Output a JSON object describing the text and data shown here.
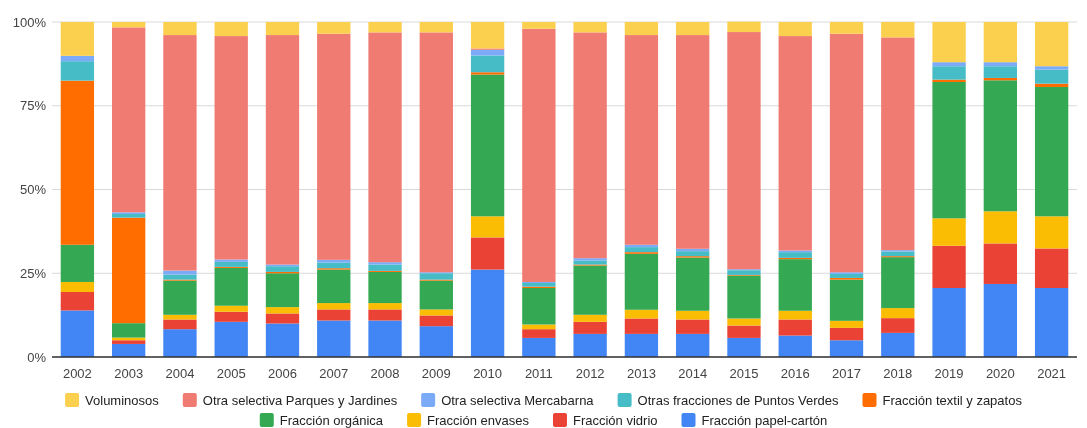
{
  "chart_data": {
    "type": "bar",
    "stacked": true,
    "categories": [
      "2002",
      "2003",
      "2004",
      "2005",
      "2006",
      "2007",
      "2008",
      "2009",
      "2010",
      "2011",
      "2012",
      "2013",
      "2014",
      "2015",
      "2016",
      "2017",
      "2018",
      "2019",
      "2020",
      "2021"
    ],
    "ylim": [
      0,
      100
    ],
    "yticks": [
      {
        "value": 0,
        "label": "0%"
      },
      {
        "value": 25,
        "label": "25%"
      },
      {
        "value": 50,
        "label": "50%"
      },
      {
        "value": 75,
        "label": "75%"
      },
      {
        "value": 100,
        "label": "100%"
      }
    ],
    "grid": "y",
    "legend": "bottom",
    "series": [
      {
        "name": "Fracción papel-cartón",
        "color": "#4285f4",
        "values": [
          13.9,
          3.9,
          8.3,
          10.5,
          10.0,
          10.9,
          10.9,
          9.2,
          26.1,
          5.7,
          6.9,
          6.9,
          6.9,
          5.7,
          6.4,
          5.0,
          7.2,
          20.6,
          21.8,
          20.6
        ]
      },
      {
        "name": "Fracción vidrio",
        "color": "#ea4335",
        "values": [
          5.5,
          1.1,
          2.9,
          3.0,
          3.0,
          3.3,
          3.3,
          3.2,
          9.6,
          2.6,
          3.6,
          4.6,
          4.3,
          3.7,
          4.8,
          3.7,
          4.4,
          12.6,
          12.1,
          11.8
        ]
      },
      {
        "name": "Fracción envases",
        "color": "#fbbc04",
        "values": [
          3.0,
          0.8,
          1.4,
          1.8,
          1.9,
          1.9,
          1.9,
          1.8,
          6.3,
          1.4,
          2.1,
          2.6,
          2.6,
          2.1,
          2.6,
          2.1,
          3.0,
          8.2,
          9.6,
          9.6
        ]
      },
      {
        "name": "Fracción orgánica",
        "color": "#34a853",
        "values": [
          11.1,
          4.3,
          10.2,
          11.3,
          10.1,
          10.0,
          9.3,
          8.6,
          42.3,
          10.9,
          14.7,
          16.7,
          15.9,
          12.8,
          15.4,
          12.3,
          15.2,
          40.7,
          39.1,
          38.6
        ]
      },
      {
        "name": "Fracción textil y zapatos",
        "color": "#ff6d01",
        "values": [
          49.0,
          31.5,
          0.3,
          0.3,
          0.4,
          0.4,
          0.3,
          0.3,
          0.7,
          0.4,
          0.3,
          0.5,
          0.4,
          0.2,
          0.4,
          0.5,
          0.3,
          0.7,
          0.7,
          1.0
        ]
      },
      {
        "name": "Otras fracciones de Puntos Verdes",
        "color": "#46bdc6",
        "values": [
          5.8,
          1.1,
          1.5,
          1.5,
          1.7,
          1.7,
          1.9,
          1.9,
          5.0,
          1.1,
          1.2,
          1.5,
          1.5,
          1.4,
          1.7,
          1.2,
          1.4,
          4.0,
          3.5,
          4.2
        ]
      },
      {
        "name": "Otra selectiva Mercabarna",
        "color": "#7baaf7",
        "values": [
          1.6,
          0.5,
          1.2,
          0.7,
          0.5,
          0.8,
          0.7,
          0.3,
          1.7,
          0.3,
          0.7,
          0.7,
          0.7,
          0.3,
          0.5,
          0.5,
          0.4,
          1.2,
          1.2,
          1.0
        ]
      },
      {
        "name": "Otra selectiva Parques y Jardines",
        "color": "#f07b72",
        "values": [
          0,
          55.2,
          70.3,
          66.7,
          68.5,
          67.5,
          68.6,
          71.6,
          0.4,
          75.6,
          67.4,
          62.6,
          63.8,
          70.8,
          64.0,
          71.2,
          63.5,
          0,
          0,
          0
        ]
      },
      {
        "name": "Voluminosos",
        "color": "#fcd04f",
        "values": [
          10.1,
          1.6,
          3.9,
          4.2,
          3.9,
          3.5,
          3.1,
          3.1,
          7.9,
          2.0,
          3.1,
          3.9,
          3.9,
          3.1,
          4.2,
          3.5,
          4.6,
          12.0,
          12.0,
          13.2
        ]
      }
    ]
  }
}
